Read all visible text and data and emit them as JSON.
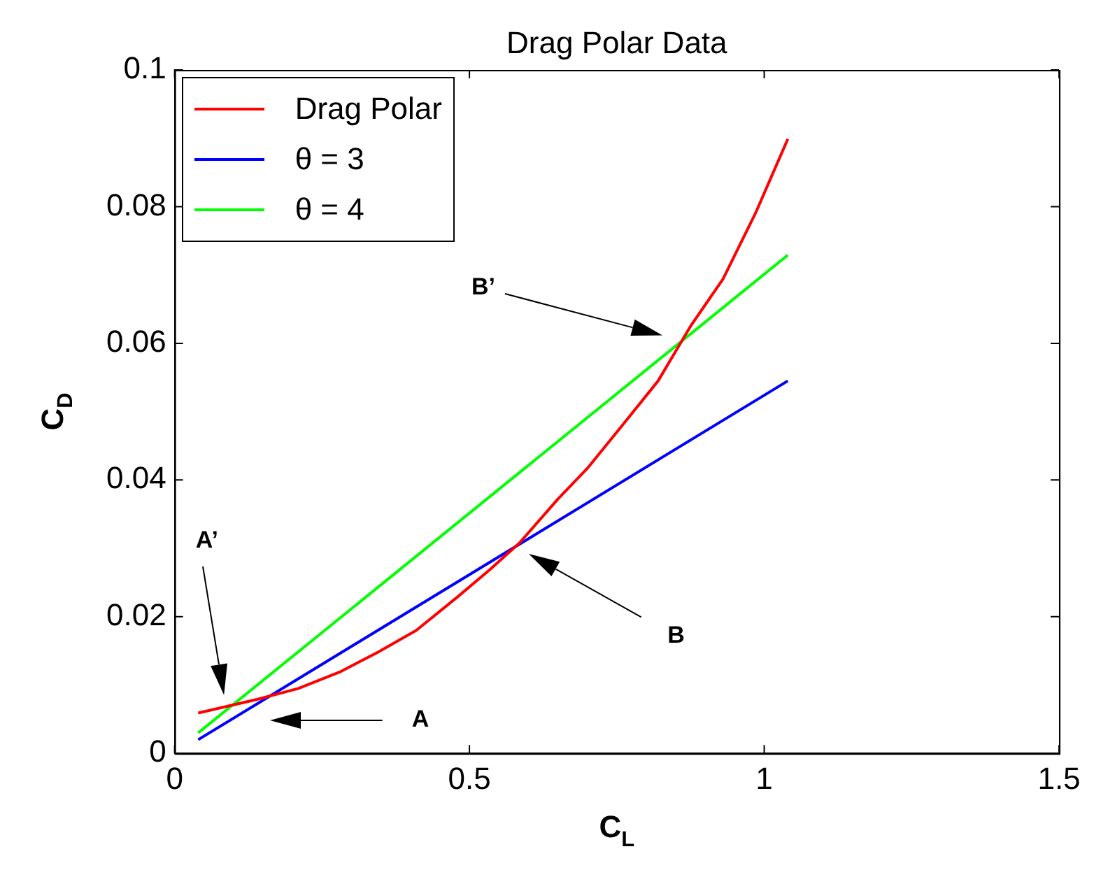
{
  "chart_data": {
    "type": "line",
    "title": "Drag Polar Data",
    "xlabel": "C$_{L}$",
    "ylabel": "C$_{D}$",
    "xlim": [
      0,
      1.5
    ],
    "xticks": [
      0,
      0.5,
      1,
      1.5
    ],
    "ylim": [
      0,
      0.1
    ],
    "yticks": [
      0,
      0.02,
      0.04,
      0.06,
      0.08,
      0.1
    ],
    "grid": false,
    "legend": "top left",
    "marker": "none",
    "line_style": "solid",
    "series": [
      {
        "name": "Drag Polar",
        "color": "#ff0000",
        "x": [
          0.04,
          0.14,
          0.21,
          0.28,
          0.345,
          0.41,
          0.48,
          0.535,
          0.585,
          0.65,
          0.7,
          0.765,
          0.82,
          0.875,
          0.93,
          0.985,
          1.04
        ],
        "values": [
          0.0059,
          0.0079,
          0.0095,
          0.0119,
          0.0148,
          0.018,
          0.0229,
          0.0269,
          0.0308,
          0.0372,
          0.0417,
          0.0486,
          0.0545,
          0.0625,
          0.0694,
          0.079,
          0.0899
        ]
      },
      {
        "name": "θ = 3",
        "color": "#0000ff",
        "x": [
          0.04,
          1.04
        ],
        "values": [
          0.002,
          0.0545
        ]
      },
      {
        "name": "θ = 4",
        "color": "#00ff00",
        "x": [
          0.04,
          1.04
        ],
        "values": [
          0.003,
          0.0729
        ]
      }
    ],
    "annotations": [
      "A’",
      "A",
      "B",
      "B’"
    ]
  }
}
